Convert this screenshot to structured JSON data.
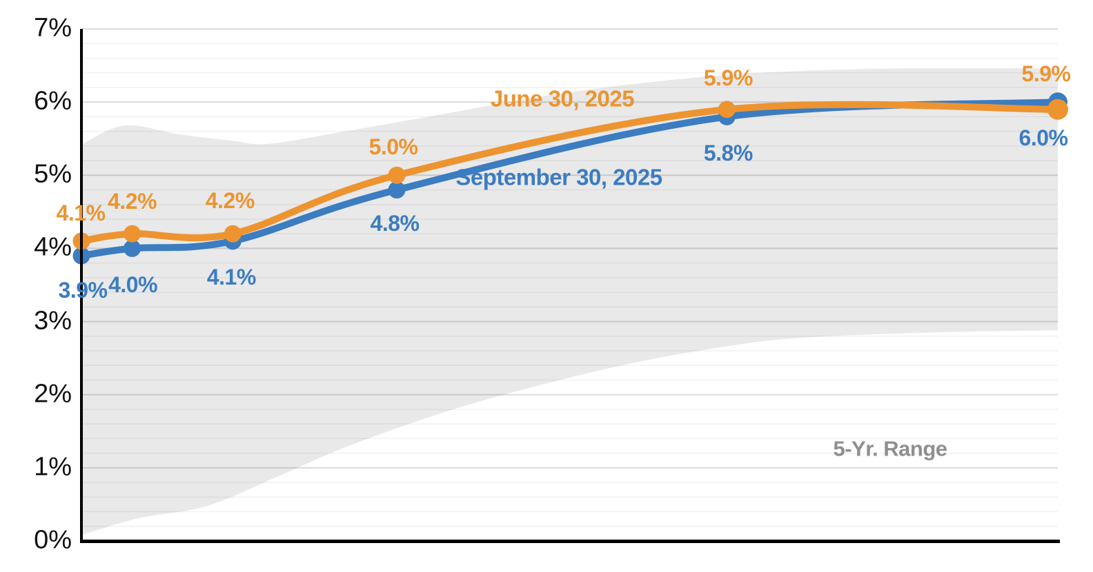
{
  "chart_data": {
    "type": "line",
    "title": "",
    "y_tick_labels": [
      "0%",
      "1%",
      "2%",
      "3%",
      "4%",
      "5%",
      "6%",
      "7%"
    ],
    "ylim": [
      0,
      7
    ],
    "x_tick_labels": [],
    "x_positions_relative": [
      0,
      0.052,
      0.155,
      0.323,
      0.661,
      1.0
    ],
    "grid": {
      "minor_step": 0.2,
      "major_step": 1,
      "minor_on": true,
      "major_on": true
    },
    "legend_position": "inline-labels",
    "series": [
      {
        "name": "June 30, 2025",
        "color": "#ED9430",
        "values": [
          4.1,
          4.2,
          4.2,
          5.0,
          5.9,
          5.9
        ],
        "point_labels": [
          "4.1%",
          "4.2%",
          "4.2%",
          "5.0%",
          "5.9%",
          "5.9%"
        ]
      },
      {
        "name": "September 30, 2025",
        "color": "#3C7CC1",
        "values": [
          3.9,
          4.0,
          4.1,
          4.8,
          5.8,
          6.0
        ],
        "point_labels": [
          "3.9%",
          "4.0%",
          "4.1%",
          "4.8%",
          "5.8%",
          "6.0%"
        ]
      }
    ],
    "band": {
      "label": "5-Yr. Range",
      "fill": "#E9E9E9",
      "label_color": "#8F8F8F",
      "top": [
        [
          0,
          5.42
        ],
        [
          0.044,
          5.68
        ],
        [
          0.1,
          5.56
        ],
        [
          0.155,
          5.47
        ],
        [
          0.192,
          5.43
        ],
        [
          0.27,
          5.6
        ],
        [
          0.376,
          5.85
        ],
        [
          0.482,
          6.1
        ],
        [
          0.588,
          6.28
        ],
        [
          0.694,
          6.4
        ],
        [
          0.835,
          6.46
        ],
        [
          1,
          6.46
        ]
      ],
      "bottom": [
        [
          0,
          0.08
        ],
        [
          0.058,
          0.31
        ],
        [
          0.129,
          0.48
        ],
        [
          0.199,
          0.87
        ],
        [
          0.27,
          1.28
        ],
        [
          0.369,
          1.75
        ],
        [
          0.461,
          2.1
        ],
        [
          0.553,
          2.4
        ],
        [
          0.637,
          2.61
        ],
        [
          0.729,
          2.77
        ],
        [
          0.871,
          2.85
        ],
        [
          1,
          2.88
        ]
      ]
    },
    "axis_color": "#000000"
  }
}
